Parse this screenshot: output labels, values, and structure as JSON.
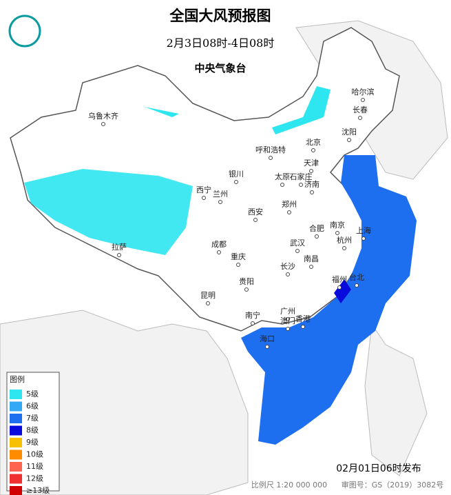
{
  "header": {
    "title": "全国大风预报图",
    "subtitle": "2月3日08时-4日08时",
    "agency": "中央气象台"
  },
  "cities": [
    "哈尔滨",
    "长春",
    "沈阳",
    "乌鲁木齐",
    "北京",
    "呼和浩特",
    "天津",
    "银川",
    "太原",
    "石家庄",
    "济南",
    "西宁",
    "兰州",
    "郑州",
    "西安",
    "合肥",
    "南京",
    "上海",
    "成都",
    "武汉",
    "杭州",
    "拉萨",
    "重庆",
    "南昌",
    "长沙",
    "福州",
    "台北",
    "贵阳",
    "昆明",
    "广州",
    "南宁",
    "澳门",
    "香港",
    "海口"
  ],
  "legend": {
    "title": "图例",
    "items": [
      {
        "label": "5级",
        "color": "#2de6f0"
      },
      {
        "label": "6级",
        "color": "#33a8f5"
      },
      {
        "label": "7级",
        "color": "#1e6ef0"
      },
      {
        "label": "8级",
        "color": "#0a0adc"
      },
      {
        "label": "9级",
        "color": "#f7c000"
      },
      {
        "label": "10级",
        "color": "#ff8c00"
      },
      {
        "label": "11级",
        "color": "#ff6450"
      },
      {
        "label": "12级",
        "color": "#f03030"
      },
      {
        "label": "≥13级",
        "color": "#d00000"
      }
    ]
  },
  "footer": {
    "release": "02月01日06时发布",
    "scale": "比例尺 1:20 000 000",
    "approval": "审图号：GS（2019）3082号"
  }
}
